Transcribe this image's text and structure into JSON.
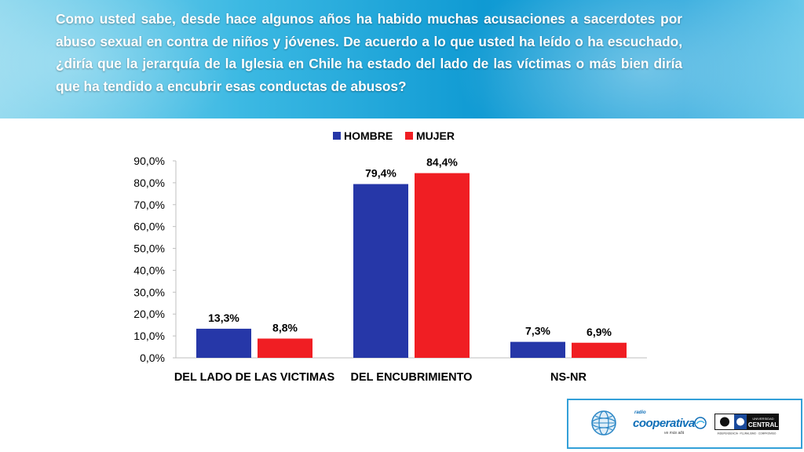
{
  "question": "Como usted sabe, desde hace algunos años ha habido muchas acusaciones a sacerdotes por abuso sexual en contra de niños y jóvenes. De acuerdo a lo que usted ha leído o ha escuchado, ¿diría que la jerarquía de la Iglesia en Chile ha estado del lado de las víctimas o más bien diría que ha tendido a encubrir esas conductas de abusos?",
  "chart_data": {
    "type": "bar",
    "title": "",
    "xlabel": "",
    "ylabel": "",
    "categories": [
      "DEL LADO DE LAS VICTIMAS",
      "DEL ENCUBRIMIENTO",
      "NS-NR"
    ],
    "series": [
      {
        "name": "HOMBRE",
        "color": "#2637a8",
        "values": [
          13.3,
          79.4,
          7.3
        ],
        "labels": [
          "13,3%",
          "79,4%",
          "7,3%"
        ]
      },
      {
        "name": "MUJER",
        "color": "#f01e23",
        "values": [
          8.8,
          84.4,
          6.9
        ],
        "labels": [
          "8,8%",
          "84,4%",
          "6,9%"
        ]
      }
    ],
    "ylim": [
      0,
      90
    ],
    "yticks": [
      0,
      10,
      20,
      30,
      40,
      50,
      60,
      70,
      80,
      90
    ],
    "ytick_labels": [
      "0,0%",
      "10,0%",
      "20,0%",
      "30,0%",
      "40,0%",
      "50,0%",
      "60,0%",
      "70,0%",
      "80,0%",
      "90,0%"
    ],
    "legend_position": "top-center",
    "grid": false
  },
  "logos": {
    "cooperativa_name": "cooperativa",
    "cooperativa_prefix": "radio",
    "cooperativa_tagline": "ve más allá",
    "central_top": "UNIVERSIDAD",
    "central_name": "CENTRAL",
    "central_motto": "INDEPENDENCIA · PLURALISMO · COMPROMISO"
  }
}
